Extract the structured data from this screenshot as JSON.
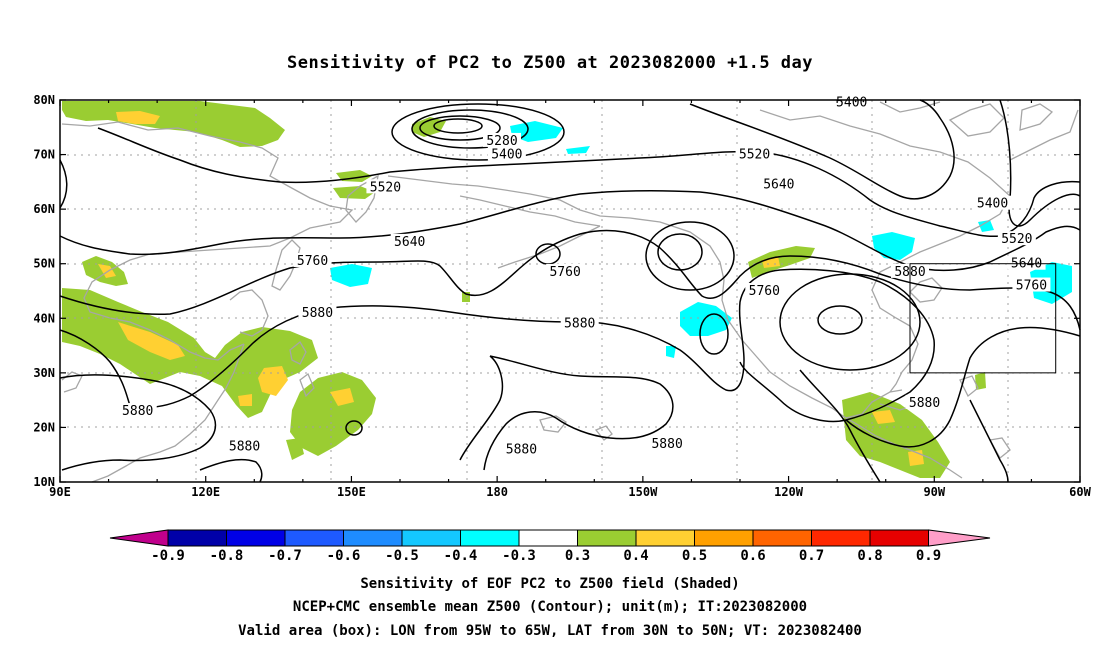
{
  "title": "Sensitivity of PC2 to Z500 at 2023082000 +1.5 day",
  "lat_labels": [
    "80N",
    "70N",
    "60N",
    "50N",
    "40N",
    "30N",
    "20N",
    "10N"
  ],
  "lon_labels": [
    "90E",
    "120E",
    "150E",
    "180",
    "150W",
    "120W",
    "90W",
    "60W"
  ],
  "contour_labels": [
    {
      "text": "5400",
      "lon": -107,
      "lat": 79.5
    },
    {
      "text": "5280",
      "lon": 181,
      "lat": 72.5
    },
    {
      "text": "5400",
      "lon": 182,
      "lat": 70
    },
    {
      "text": "5520",
      "lon": -127,
      "lat": 70
    },
    {
      "text": "5520",
      "lon": 157,
      "lat": 64
    },
    {
      "text": "5640",
      "lon": -122,
      "lat": 64.5
    },
    {
      "text": "5400",
      "lon": -78,
      "lat": 61
    },
    {
      "text": "5640",
      "lon": 162,
      "lat": 54
    },
    {
      "text": "5520",
      "lon": -73,
      "lat": 54.5
    },
    {
      "text": "5760",
      "lon": 142,
      "lat": 50.5
    },
    {
      "text": "5760",
      "lon": -166,
      "lat": 48.5
    },
    {
      "text": "5640",
      "lon": -71,
      "lat": 50
    },
    {
      "text": "5880",
      "lon": -95,
      "lat": 48.5
    },
    {
      "text": "5760",
      "lon": -70,
      "lat": 46
    },
    {
      "text": "5760",
      "lon": -125,
      "lat": 45
    },
    {
      "text": "5880",
      "lon": 143,
      "lat": 41
    },
    {
      "text": "5880",
      "lon": -163,
      "lat": 39
    },
    {
      "text": "5880",
      "lon": 106,
      "lat": 23
    },
    {
      "text": "5880",
      "lon": -92,
      "lat": 24.5
    },
    {
      "text": "5880",
      "lon": 128,
      "lat": 16.5
    },
    {
      "text": "5880",
      "lon": -175,
      "lat": 16
    },
    {
      "text": "5880",
      "lon": -145,
      "lat": 17
    }
  ],
  "colorbar": {
    "labels": [
      "-0.9",
      "-0.8",
      "-0.7",
      "-0.6",
      "-0.5",
      "-0.4",
      "-0.3",
      "0.3",
      "0.4",
      "0.5",
      "0.6",
      "0.7",
      "0.8",
      "0.9"
    ],
    "colors": [
      "#c0008c",
      "#0000a8",
      "#0000e6",
      "#1e5aff",
      "#1e8cff",
      "#14c8ff",
      "#00ffff",
      "#ffffff",
      "#9acd32",
      "#ffd032",
      "#ffa000",
      "#ff6400",
      "#ff2800",
      "#e60000",
      "#ff9ec8"
    ]
  },
  "valid_box": {
    "lon_min": -95,
    "lon_max": -65,
    "lat_min": 30,
    "lat_max": 50
  },
  "caption": {
    "line1": "Sensitivity of EOF PC2 to Z500 field (Shaded)",
    "line2": "NCEP+CMC ensemble mean Z500 (Contour); unit(m); IT:2023082000",
    "line3": "Valid area (box): LON from 95W to 65W, LAT from 30N to 50N; VT: 2023082400"
  }
}
